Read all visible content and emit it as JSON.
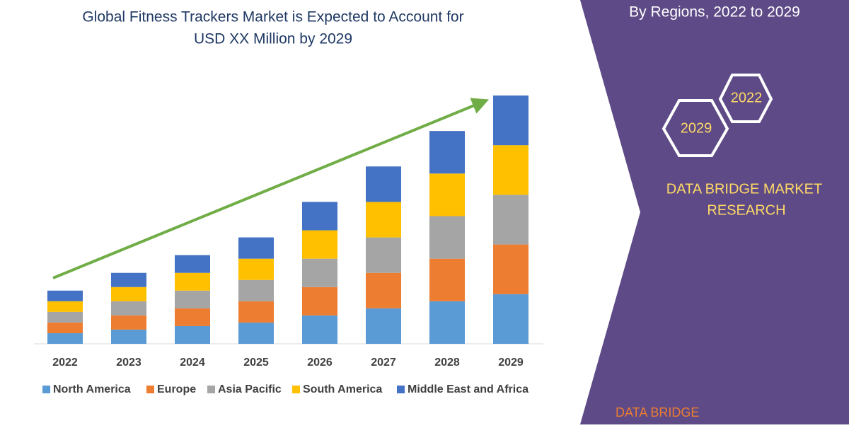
{
  "chart_data": {
    "type": "stacked_bar",
    "title": [
      "Global Fitness Trackers Market is Expected to Account for",
      "USD XX Million by 2029"
    ],
    "categories": [
      "2022",
      "2023",
      "2024",
      "2025",
      "2026",
      "2027",
      "2028",
      "2029"
    ],
    "series": [
      {
        "name": "North America",
        "color": "#5b9bd5",
        "values": [
          15,
          20,
          25,
          30,
          40,
          50,
          60,
          70
        ]
      },
      {
        "name": "Europe",
        "color": "#ed7d31",
        "values": [
          15,
          20,
          25,
          30,
          40,
          50,
          60,
          70
        ]
      },
      {
        "name": "Asia Pacific",
        "color": "#a5a5a5",
        "values": [
          15,
          20,
          25,
          30,
          40,
          50,
          60,
          70
        ]
      },
      {
        "name": "South America",
        "color": "#ffc000",
        "values": [
          15,
          20,
          25,
          30,
          40,
          50,
          60,
          70
        ]
      },
      {
        "name": "Middle East and Africa",
        "color": "#4472c4",
        "values": [
          15,
          20,
          25,
          30,
          40,
          50,
          60,
          70
        ]
      }
    ]
  },
  "panel": {
    "subtitle": "By Regions, 2022 to 2029",
    "hex_labels": [
      "2022",
      "2029"
    ],
    "brand": [
      "DATA BRIDGE MARKET",
      "RESEARCH"
    ],
    "logo": "DATA BRIDGE"
  }
}
